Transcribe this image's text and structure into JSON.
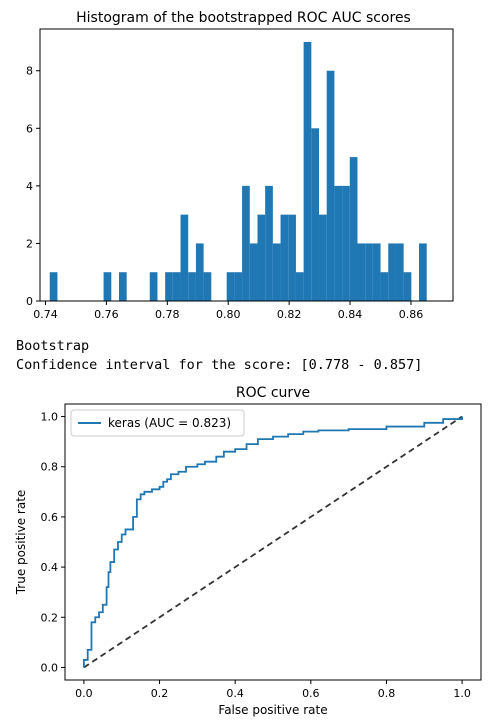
{
  "chart_data": [
    {
      "type": "bar",
      "title": "Histogram of the bootstrapped ROC AUC scores",
      "xlabel": "",
      "ylabel": "",
      "xlim": [
        0.7382,
        0.8738
      ],
      "ylim": [
        0,
        9.45
      ],
      "xticks": [
        "0.74",
        "0.76",
        "0.78",
        "0.80",
        "0.82",
        "0.84",
        "0.86"
      ],
      "yticks": [
        "0",
        "2",
        "4",
        "6",
        "8"
      ],
      "bin_start": 0.7414,
      "bin_width": 0.002526,
      "counts": [
        1,
        0,
        0,
        0,
        0,
        0,
        0,
        1,
        0,
        1,
        0,
        0,
        0,
        1,
        0,
        1,
        1,
        3,
        1,
        2,
        1,
        0,
        0,
        1,
        1,
        4,
        2,
        3,
        4,
        2,
        3,
        3,
        1,
        9,
        6,
        3,
        8,
        4,
        4,
        5,
        2,
        2,
        2,
        1,
        2,
        2,
        1,
        0,
        2
      ],
      "color": "#1f77b4"
    },
    {
      "type": "line",
      "title": "ROC curve",
      "xlabel": "False positive rate",
      "ylabel": "True positive rate",
      "xlim": [
        -0.05,
        1.05
      ],
      "ylim": [
        -0.05,
        1.05
      ],
      "xticks": [
        "0.0",
        "0.2",
        "0.4",
        "0.6",
        "0.8",
        "1.0"
      ],
      "yticks": [
        "0.0",
        "0.2",
        "0.4",
        "0.6",
        "0.8",
        "1.0"
      ],
      "legend_position": "top-left",
      "series": [
        {
          "name": "keras (AUC = 0.823)",
          "color": "#1f77b4",
          "x": [
            0,
            0,
            0.01,
            0.01,
            0.02,
            0.02,
            0.03,
            0.03,
            0.04,
            0.04,
            0.05,
            0.05,
            0.06,
            0.06,
            0.065,
            0.065,
            0.07,
            0.07,
            0.08,
            0.08,
            0.09,
            0.09,
            0.1,
            0.1,
            0.11,
            0.11,
            0.13,
            0.13,
            0.14,
            0.14,
            0.15,
            0.15,
            0.16,
            0.16,
            0.18,
            0.18,
            0.2,
            0.2,
            0.21,
            0.21,
            0.22,
            0.22,
            0.23,
            0.23,
            0.25,
            0.25,
            0.27,
            0.27,
            0.3,
            0.3,
            0.32,
            0.32,
            0.35,
            0.35,
            0.37,
            0.37,
            0.4,
            0.4,
            0.43,
            0.43,
            0.46,
            0.46,
            0.5,
            0.5,
            0.54,
            0.54,
            0.58,
            0.58,
            0.62,
            0.62,
            0.7,
            0.7,
            0.8,
            0.8,
            0.9,
            0.9,
            0.95,
            0.95,
            1.0,
            1.0
          ],
          "y": [
            0,
            0.03,
            0.03,
            0.07,
            0.07,
            0.18,
            0.18,
            0.2,
            0.2,
            0.22,
            0.22,
            0.25,
            0.25,
            0.32,
            0.32,
            0.38,
            0.38,
            0.42,
            0.42,
            0.47,
            0.47,
            0.5,
            0.5,
            0.53,
            0.53,
            0.55,
            0.55,
            0.6,
            0.6,
            0.67,
            0.67,
            0.69,
            0.69,
            0.7,
            0.7,
            0.71,
            0.71,
            0.72,
            0.72,
            0.74,
            0.74,
            0.75,
            0.75,
            0.77,
            0.77,
            0.78,
            0.78,
            0.8,
            0.8,
            0.81,
            0.81,
            0.82,
            0.82,
            0.84,
            0.84,
            0.86,
            0.86,
            0.87,
            0.87,
            0.89,
            0.89,
            0.91,
            0.91,
            0.92,
            0.92,
            0.93,
            0.93,
            0.94,
            0.94,
            0.945,
            0.945,
            0.95,
            0.95,
            0.96,
            0.96,
            0.975,
            0.975,
            0.99,
            0.99,
            1.0
          ]
        },
        {
          "x": [
            0,
            1
          ],
          "y": [
            0,
            1
          ],
          "style": "dashed",
          "color": "#333333"
        }
      ]
    }
  ],
  "console": {
    "line1": "Bootstrap",
    "line2": "Confidence interval for the score: [0.778 - 0.857]"
  }
}
